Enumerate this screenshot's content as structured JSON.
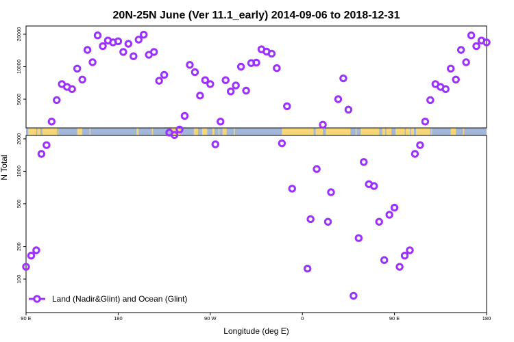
{
  "chart_data": {
    "type": "scatter",
    "title": "20N-25N June (Ver 11.1_early)   2014-09-06 to 2018-12-31",
    "xlabel": "Longitude (deg E)",
    "ylabel": "N Total",
    "x_ticks": [
      "90 E",
      "180",
      "90 W",
      "0",
      "90 E",
      "180"
    ],
    "upper_y_ticks": [
      "20000",
      "10000",
      "5000"
    ],
    "lower_y_ticks": [
      "2000",
      "1000",
      "500",
      "200",
      "100"
    ],
    "legend": "Land (Nadir&Glint) and Ocean (Glint)",
    "colors": {
      "series": "#9b30ff",
      "ocean": "#a3b8d8",
      "land": "#f5d77a"
    },
    "series": [
      {
        "name": "Land (Nadir&Glint) and Ocean (Glint)",
        "points": [
          {
            "lon": 90,
            "panel": "lower",
            "value": 130
          },
          {
            "lon": 95,
            "panel": "lower",
            "value": 165
          },
          {
            "lon": 100,
            "panel": "lower",
            "value": 185
          },
          {
            "lon": 105,
            "panel": "lower",
            "value": 1450
          },
          {
            "lon": 110,
            "panel": "lower",
            "value": 1750
          },
          {
            "lon": 115,
            "panel": "upper",
            "value": 3100
          },
          {
            "lon": 120,
            "panel": "upper",
            "value": 4900
          },
          {
            "lon": 125,
            "panel": "upper",
            "value": 6900
          },
          {
            "lon": 130,
            "panel": "upper",
            "value": 6500
          },
          {
            "lon": 135,
            "panel": "upper",
            "value": 6200
          },
          {
            "lon": 140,
            "panel": "upper",
            "value": 9600
          },
          {
            "lon": 145,
            "panel": "upper",
            "value": 7600
          },
          {
            "lon": 150,
            "panel": "upper",
            "value": 14300
          },
          {
            "lon": 155,
            "panel": "upper",
            "value": 11000
          },
          {
            "lon": 160,
            "panel": "upper",
            "value": 19500
          },
          {
            "lon": 165,
            "panel": "upper",
            "value": 15500
          },
          {
            "lon": 170,
            "panel": "upper",
            "value": 17500
          },
          {
            "lon": 175,
            "panel": "upper",
            "value": 16800
          },
          {
            "lon": 180,
            "panel": "upper",
            "value": 17200
          },
          {
            "lon": 185,
            "panel": "upper",
            "value": 13700
          },
          {
            "lon": 190,
            "panel": "upper",
            "value": 16300
          },
          {
            "lon": 195,
            "panel": "upper",
            "value": 12500
          },
          {
            "lon": 200,
            "panel": "upper",
            "value": 17800
          },
          {
            "lon": 205,
            "panel": "upper",
            "value": 19800
          },
          {
            "lon": 210,
            "panel": "upper",
            "value": 12900
          },
          {
            "lon": 215,
            "panel": "upper",
            "value": 13700
          },
          {
            "lon": 220,
            "panel": "upper",
            "value": 7400
          },
          {
            "lon": 225,
            "panel": "upper",
            "value": 8400
          },
          {
            "lon": 230,
            "panel": "upper",
            "value": 2450
          },
          {
            "lon": 235,
            "panel": "upper",
            "value": 2330
          },
          {
            "lon": 240,
            "panel": "upper",
            "value": 2620
          },
          {
            "lon": 245,
            "panel": "upper",
            "value": 3500
          },
          {
            "lon": 250,
            "panel": "upper",
            "value": 10400
          },
          {
            "lon": 255,
            "panel": "upper",
            "value": 8900
          },
          {
            "lon": 260,
            "panel": "upper",
            "value": 5400
          },
          {
            "lon": 265,
            "panel": "upper",
            "value": 7500
          },
          {
            "lon": 270,
            "panel": "upper",
            "value": 6900
          },
          {
            "lon": 275,
            "panel": "lower",
            "value": 1780
          },
          {
            "lon": 280,
            "panel": "upper",
            "value": 3100
          },
          {
            "lon": 285,
            "panel": "upper",
            "value": 7500
          },
          {
            "lon": 290,
            "panel": "upper",
            "value": 5900
          },
          {
            "lon": 295,
            "panel": "upper",
            "value": 6700
          },
          {
            "lon": 300,
            "panel": "upper",
            "value": 10000
          },
          {
            "lon": 305,
            "panel": "upper",
            "value": 6000
          },
          {
            "lon": 310,
            "panel": "upper",
            "value": 10800
          },
          {
            "lon": 315,
            "panel": "upper",
            "value": 10900
          },
          {
            "lon": 320,
            "panel": "upper",
            "value": 14500
          },
          {
            "lon": 325,
            "panel": "upper",
            "value": 13800
          },
          {
            "lon": 330,
            "panel": "upper",
            "value": 13200
          },
          {
            "lon": 335,
            "panel": "upper",
            "value": 9700
          },
          {
            "lon": 340,
            "panel": "upper",
            "value": 1950
          },
          {
            "lon": 345,
            "panel": "upper",
            "value": 4300
          },
          {
            "lon": 350,
            "panel": "lower",
            "value": 690
          },
          {
            "lon": 365,
            "panel": "lower",
            "value": 125
          },
          {
            "lon": 368,
            "panel": "lower",
            "value": 360
          },
          {
            "lon": 374,
            "panel": "lower",
            "value": 1050
          },
          {
            "lon": 380,
            "panel": "upper",
            "value": 2900
          },
          {
            "lon": 385,
            "panel": "lower",
            "value": 340
          },
          {
            "lon": 388,
            "panel": "lower",
            "value": 640
          },
          {
            "lon": 395,
            "panel": "upper",
            "value": 5000
          },
          {
            "lon": 400,
            "panel": "upper",
            "value": 7800
          },
          {
            "lon": 405,
            "panel": "upper",
            "value": 4000
          },
          {
            "lon": 410,
            "panel": "lower",
            "value": 70
          },
          {
            "lon": 415,
            "panel": "lower",
            "value": 240
          },
          {
            "lon": 420,
            "panel": "lower",
            "value": 1220
          },
          {
            "lon": 425,
            "panel": "lower",
            "value": 760
          },
          {
            "lon": 430,
            "panel": "lower",
            "value": 730
          },
          {
            "lon": 435,
            "panel": "lower",
            "value": 340
          },
          {
            "lon": 440,
            "panel": "lower",
            "value": 150
          },
          {
            "lon": 445,
            "panel": "lower",
            "value": 395
          },
          {
            "lon": 450,
            "panel": "lower",
            "value": 460
          },
          {
            "lon": 455,
            "panel": "lower",
            "value": 130
          },
          {
            "lon": 460,
            "panel": "lower",
            "value": 165
          },
          {
            "lon": 465,
            "panel": "lower",
            "value": 185
          },
          {
            "lon": 470,
            "panel": "lower",
            "value": 1450
          },
          {
            "lon": 475,
            "panel": "lower",
            "value": 1750
          },
          {
            "lon": 480,
            "panel": "upper",
            "value": 3100
          },
          {
            "lon": 485,
            "panel": "upper",
            "value": 4900
          },
          {
            "lon": 490,
            "panel": "upper",
            "value": 6900
          },
          {
            "lon": 495,
            "panel": "upper",
            "value": 6500
          },
          {
            "lon": 500,
            "panel": "upper",
            "value": 6200
          },
          {
            "lon": 505,
            "panel": "upper",
            "value": 9600
          },
          {
            "lon": 510,
            "panel": "upper",
            "value": 7600
          },
          {
            "lon": 515,
            "panel": "upper",
            "value": 14300
          },
          {
            "lon": 520,
            "panel": "upper",
            "value": 11000
          },
          {
            "lon": 525,
            "panel": "upper",
            "value": 19500
          },
          {
            "lon": 530,
            "panel": "upper",
            "value": 15500
          },
          {
            "lon": 535,
            "panel": "upper",
            "value": 17500
          },
          {
            "lon": 540,
            "panel": "upper",
            "value": 16800
          }
        ]
      }
    ],
    "land_spans": [
      [
        92,
        100
      ],
      [
        101,
        104
      ],
      [
        106,
        120
      ],
      [
        121,
        121.5
      ],
      [
        140,
        145
      ],
      [
        152,
        153
      ],
      [
        198,
        200
      ],
      [
        213,
        214
      ],
      [
        232,
        241
      ],
      [
        254,
        258
      ],
      [
        262,
        267
      ],
      [
        272,
        274
      ],
      [
        278,
        279
      ],
      [
        282,
        286
      ],
      [
        293,
        294
      ],
      [
        340,
        371
      ],
      [
        373,
        380
      ],
      [
        383,
        407
      ],
      [
        412,
        413
      ],
      [
        417,
        435
      ],
      [
        438,
        441
      ],
      [
        442,
        447
      ],
      [
        451,
        460
      ],
      [
        461,
        465
      ],
      [
        466,
        469
      ],
      [
        471,
        485
      ],
      [
        486,
        486.5
      ],
      [
        505,
        510
      ],
      [
        517,
        518
      ]
    ]
  }
}
